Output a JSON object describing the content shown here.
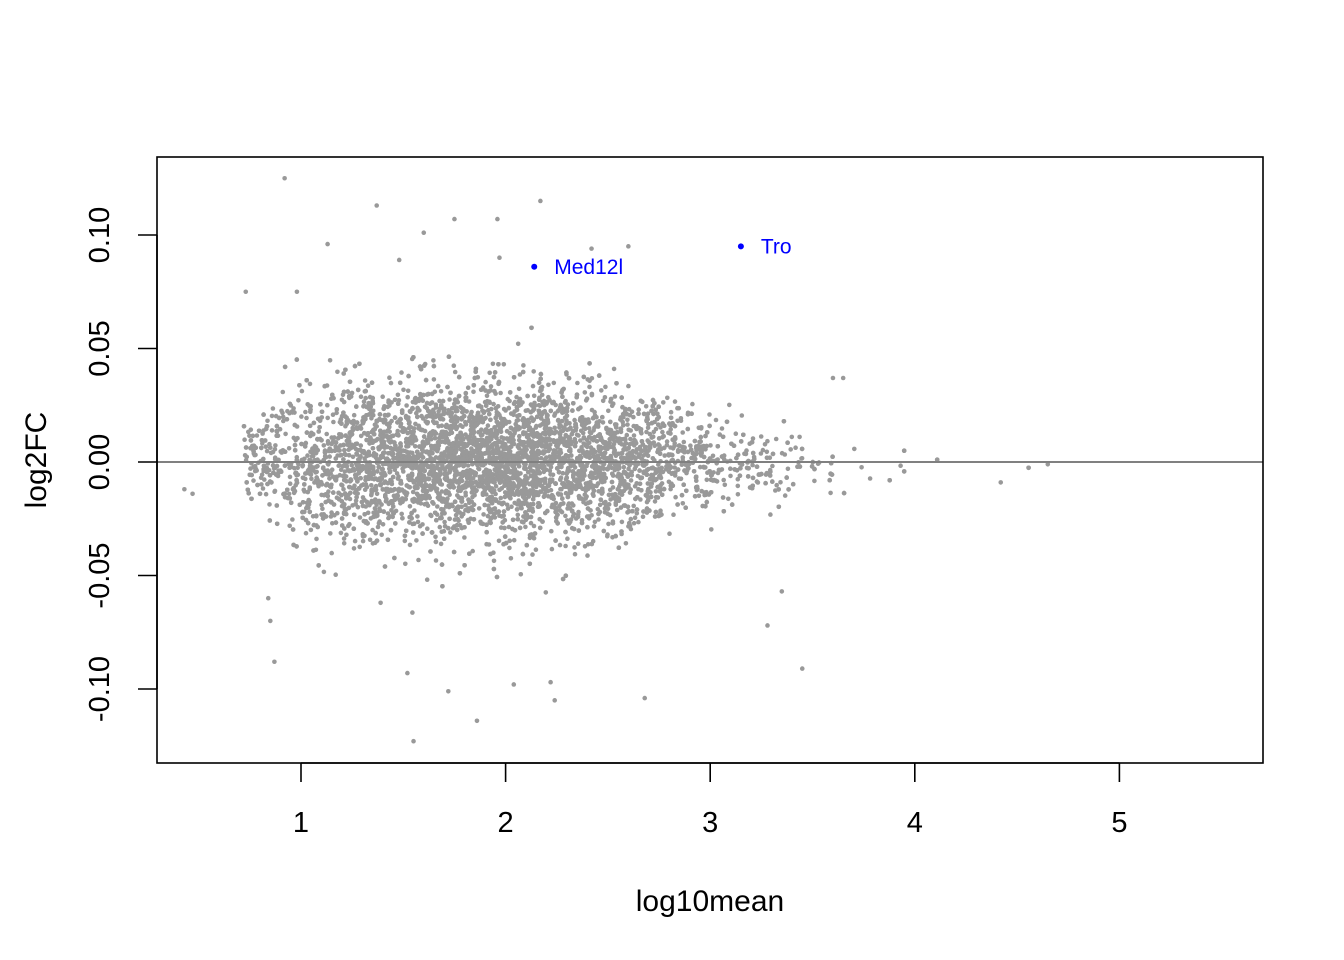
{
  "chart_data": {
    "type": "scatter",
    "title": "",
    "xlabel": "log10mean",
    "ylabel": "log2FC",
    "xlim": [
      0.3,
      5.7
    ],
    "ylim": [
      -0.132,
      0.135
    ],
    "x_ticks": [
      1,
      2,
      3,
      4,
      5
    ],
    "x_tick_labels": [
      "1",
      "2",
      "3",
      "4",
      "5"
    ],
    "y_ticks": [
      -0.1,
      -0.05,
      0.0,
      0.05,
      0.1
    ],
    "y_tick_labels": [
      "-0.10",
      "-0.05",
      "0.00",
      "0.05",
      "0.10"
    ],
    "grid": false,
    "reference_line": {
      "y": 0,
      "color": "#808080"
    },
    "background_points": {
      "color": "#999999",
      "approx_count": 15000,
      "x_range": [
        0.4,
        4.7
      ],
      "y_range": [
        -0.124,
        0.125
      ],
      "note_shape": "MA-plot cloud, widest spread near log10mean 1.5-2.2, narrowing toward high means"
    },
    "highlighted_points": [
      {
        "label": "Med12l",
        "x": 2.14,
        "y": 0.086,
        "color": "#0000ff"
      },
      {
        "label": "Tro",
        "x": 3.15,
        "y": 0.095,
        "color": "#0000ff"
      }
    ],
    "outlier_points": [
      {
        "x": 0.92,
        "y": 0.125
      },
      {
        "x": 1.37,
        "y": 0.113
      },
      {
        "x": 2.17,
        "y": 0.115
      },
      {
        "x": 1.96,
        "y": 0.107
      },
      {
        "x": 1.75,
        "y": 0.107
      },
      {
        "x": 1.6,
        "y": 0.101
      },
      {
        "x": 1.13,
        "y": 0.096
      },
      {
        "x": 2.42,
        "y": 0.094
      },
      {
        "x": 2.6,
        "y": 0.095
      },
      {
        "x": 1.97,
        "y": 0.09
      },
      {
        "x": 1.48,
        "y": 0.089
      },
      {
        "x": 0.73,
        "y": 0.075
      },
      {
        "x": 0.98,
        "y": 0.075
      },
      {
        "x": 1.55,
        "y": -0.123
      },
      {
        "x": 1.86,
        "y": -0.114
      },
      {
        "x": 2.24,
        "y": -0.105
      },
      {
        "x": 2.68,
        "y": -0.104
      },
      {
        "x": 1.72,
        "y": -0.101
      },
      {
        "x": 1.52,
        "y": -0.093
      },
      {
        "x": 3.45,
        "y": -0.091
      },
      {
        "x": 0.87,
        "y": -0.088
      },
      {
        "x": 0.85,
        "y": -0.07
      },
      {
        "x": 0.84,
        "y": -0.06
      },
      {
        "x": 3.28,
        "y": -0.072
      },
      {
        "x": 3.35,
        "y": -0.057
      },
      {
        "x": 0.43,
        "y": -0.012
      },
      {
        "x": 0.47,
        "y": -0.014
      },
      {
        "x": 4.65,
        "y": -0.001
      },
      {
        "x": 4.42,
        "y": -0.009
      },
      {
        "x": 3.65,
        "y": 0.037
      },
      {
        "x": 3.6,
        "y": 0.037
      },
      {
        "x": 2.22,
        "y": -0.097
      },
      {
        "x": 2.04,
        "y": -0.098
      }
    ]
  }
}
